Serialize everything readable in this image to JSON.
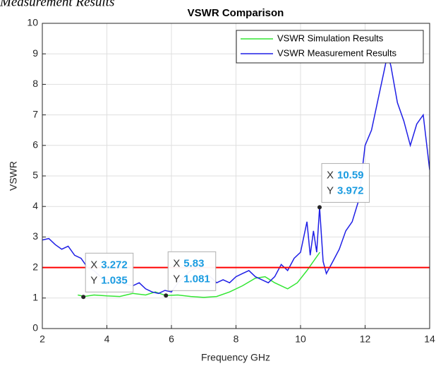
{
  "chart_data": {
    "type": "line",
    "header_fragment": "Measurement Results",
    "title": "VSWR Comparison",
    "xlabel": "Frequency GHz",
    "ylabel": "VSWR",
    "xlim": [
      2,
      14
    ],
    "xticks": [
      2,
      4,
      6,
      8,
      10,
      12,
      14
    ],
    "ylim": [
      0,
      10
    ],
    "yticks": [
      0,
      1,
      2,
      3,
      4,
      5,
      6,
      7,
      8,
      9,
      10
    ],
    "grid": true,
    "legend": "northeast",
    "series": [
      {
        "name": "VSWR Simulation Results",
        "color": "#33e633",
        "x": [
          3.1,
          3.3,
          3.6,
          4.0,
          4.4,
          4.8,
          5.2,
          5.5,
          5.83,
          6.2,
          6.6,
          7.0,
          7.4,
          7.8,
          8.2,
          8.6,
          8.9,
          9.2,
          9.6,
          9.9,
          10.2,
          10.6
        ],
        "values": [
          1.1,
          1.05,
          1.1,
          1.07,
          1.05,
          1.15,
          1.1,
          1.2,
          1.081,
          1.1,
          1.05,
          1.02,
          1.05,
          1.2,
          1.4,
          1.65,
          1.7,
          1.5,
          1.3,
          1.5,
          1.9,
          2.5
        ]
      },
      {
        "name": "VSWR Measurement Results",
        "color": "#1f1fe6",
        "x": [
          2.0,
          2.2,
          2.4,
          2.6,
          2.8,
          3.0,
          3.2,
          3.4,
          3.6,
          3.8,
          4.0,
          4.2,
          4.4,
          4.6,
          4.8,
          5.0,
          5.2,
          5.4,
          5.6,
          5.8,
          6.0,
          6.2,
          6.4,
          6.6,
          6.8,
          7.0,
          7.2,
          7.4,
          7.6,
          7.8,
          8.0,
          8.2,
          8.4,
          8.6,
          8.8,
          9.0,
          9.2,
          9.4,
          9.6,
          9.8,
          10.0,
          10.2,
          10.3,
          10.4,
          10.5,
          10.59,
          10.7,
          10.8,
          11.0,
          11.2,
          11.4,
          11.6,
          11.8,
          12.0,
          12.2,
          12.4,
          12.6,
          12.7,
          12.8,
          13.0,
          13.2,
          13.4,
          13.6,
          13.8,
          14.0
        ],
        "values": [
          2.9,
          2.95,
          2.75,
          2.6,
          2.7,
          2.4,
          2.3,
          2.0,
          1.9,
          1.7,
          1.6,
          1.55,
          1.5,
          1.45,
          1.4,
          1.5,
          1.3,
          1.2,
          1.15,
          1.25,
          1.2,
          1.5,
          1.7,
          1.9,
          2.0,
          1.85,
          1.7,
          1.5,
          1.6,
          1.5,
          1.7,
          1.8,
          1.9,
          1.7,
          1.6,
          1.5,
          1.7,
          2.1,
          1.9,
          2.3,
          2.5,
          3.5,
          2.4,
          3.2,
          2.5,
          3.972,
          2.2,
          1.8,
          2.2,
          2.6,
          3.2,
          3.5,
          4.2,
          6.0,
          6.5,
          7.5,
          8.5,
          9.0,
          8.6,
          7.4,
          6.8,
          6.0,
          6.7,
          7.0,
          5.2
        ]
      }
    ],
    "reference_line": {
      "y": 2,
      "color": "#ff0000"
    },
    "datatip_labels": [
      "X",
      "Y"
    ],
    "datatips": [
      {
        "x": 3.272,
        "y": 1.035
      },
      {
        "x": 5.83,
        "y": 1.081
      },
      {
        "x": 10.59,
        "y": 3.972
      }
    ]
  }
}
